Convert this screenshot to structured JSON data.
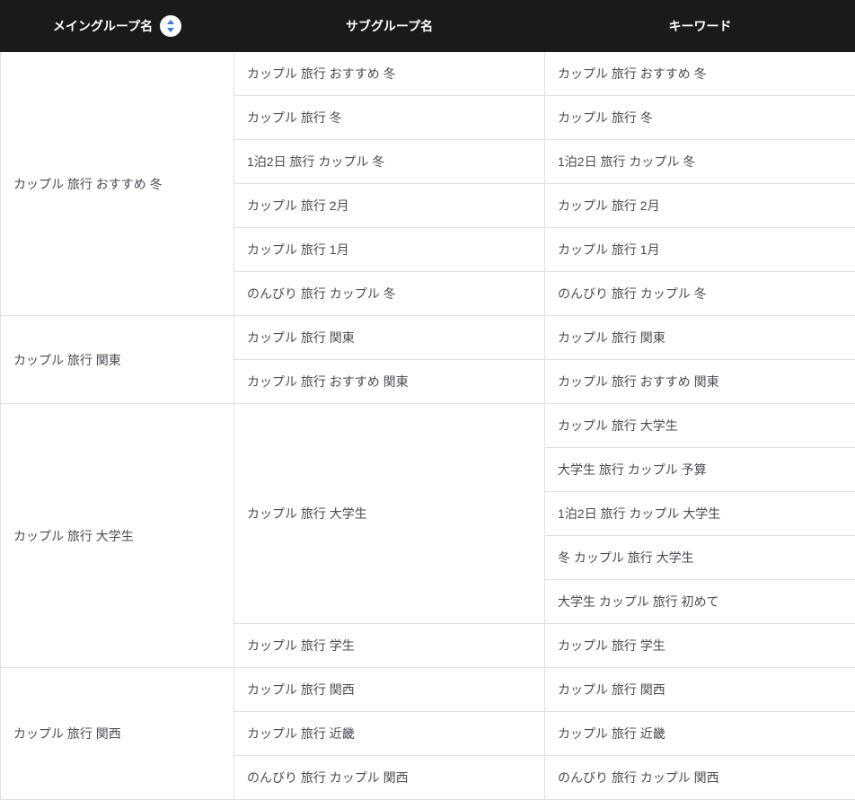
{
  "columns": {
    "main": "メイングループ名",
    "sub": "サブグループ名",
    "keyword": "キーワード"
  },
  "sort_icon": {
    "up_color": "#2a7de1",
    "down_color": "#2a7de1",
    "bg": "#ffffff"
  },
  "groups": [
    {
      "main": "カップル 旅行 おすすめ 冬",
      "subs": [
        {
          "sub": "カップル 旅行 おすすめ 冬",
          "keywords": [
            "カップル 旅行 おすすめ 冬"
          ]
        },
        {
          "sub": "カップル 旅行 冬",
          "keywords": [
            "カップル 旅行 冬"
          ]
        },
        {
          "sub": "1泊2日 旅行 カップル 冬",
          "keywords": [
            "1泊2日 旅行 カップル 冬"
          ]
        },
        {
          "sub": "カップル 旅行 2月",
          "keywords": [
            "カップル 旅行 2月"
          ]
        },
        {
          "sub": "カップル 旅行 1月",
          "keywords": [
            "カップル 旅行 1月"
          ]
        },
        {
          "sub": "のんびり 旅行 カップル 冬",
          "keywords": [
            "のんびり 旅行 カップル 冬"
          ]
        }
      ]
    },
    {
      "main": "カップル 旅行 関東",
      "subs": [
        {
          "sub": "カップル 旅行 関東",
          "keywords": [
            "カップル 旅行 関東"
          ]
        },
        {
          "sub": "カップル 旅行 おすすめ 関東",
          "keywords": [
            "カップル 旅行 おすすめ 関東"
          ]
        }
      ]
    },
    {
      "main": "カップル 旅行 大学生",
      "subs": [
        {
          "sub": "カップル 旅行 大学生",
          "keywords": [
            "カップル 旅行 大学生",
            "大学生 旅行 カップル 予算",
            "1泊2日 旅行 カップル 大学生",
            "冬 カップル 旅行 大学生",
            "大学生 カップル 旅行 初めて"
          ]
        },
        {
          "sub": "カップル 旅行 学生",
          "keywords": [
            "カップル 旅行 学生"
          ]
        }
      ]
    },
    {
      "main": "カップル 旅行 関西",
      "subs": [
        {
          "sub": "カップル 旅行 関西",
          "keywords": [
            "カップル 旅行 関西"
          ]
        },
        {
          "sub": "カップル 旅行 近畿",
          "keywords": [
            "カップル 旅行 近畿"
          ]
        },
        {
          "sub": "のんびり 旅行 カップル 関西",
          "keywords": [
            "のんびり 旅行 カップル 関西"
          ]
        }
      ]
    }
  ]
}
